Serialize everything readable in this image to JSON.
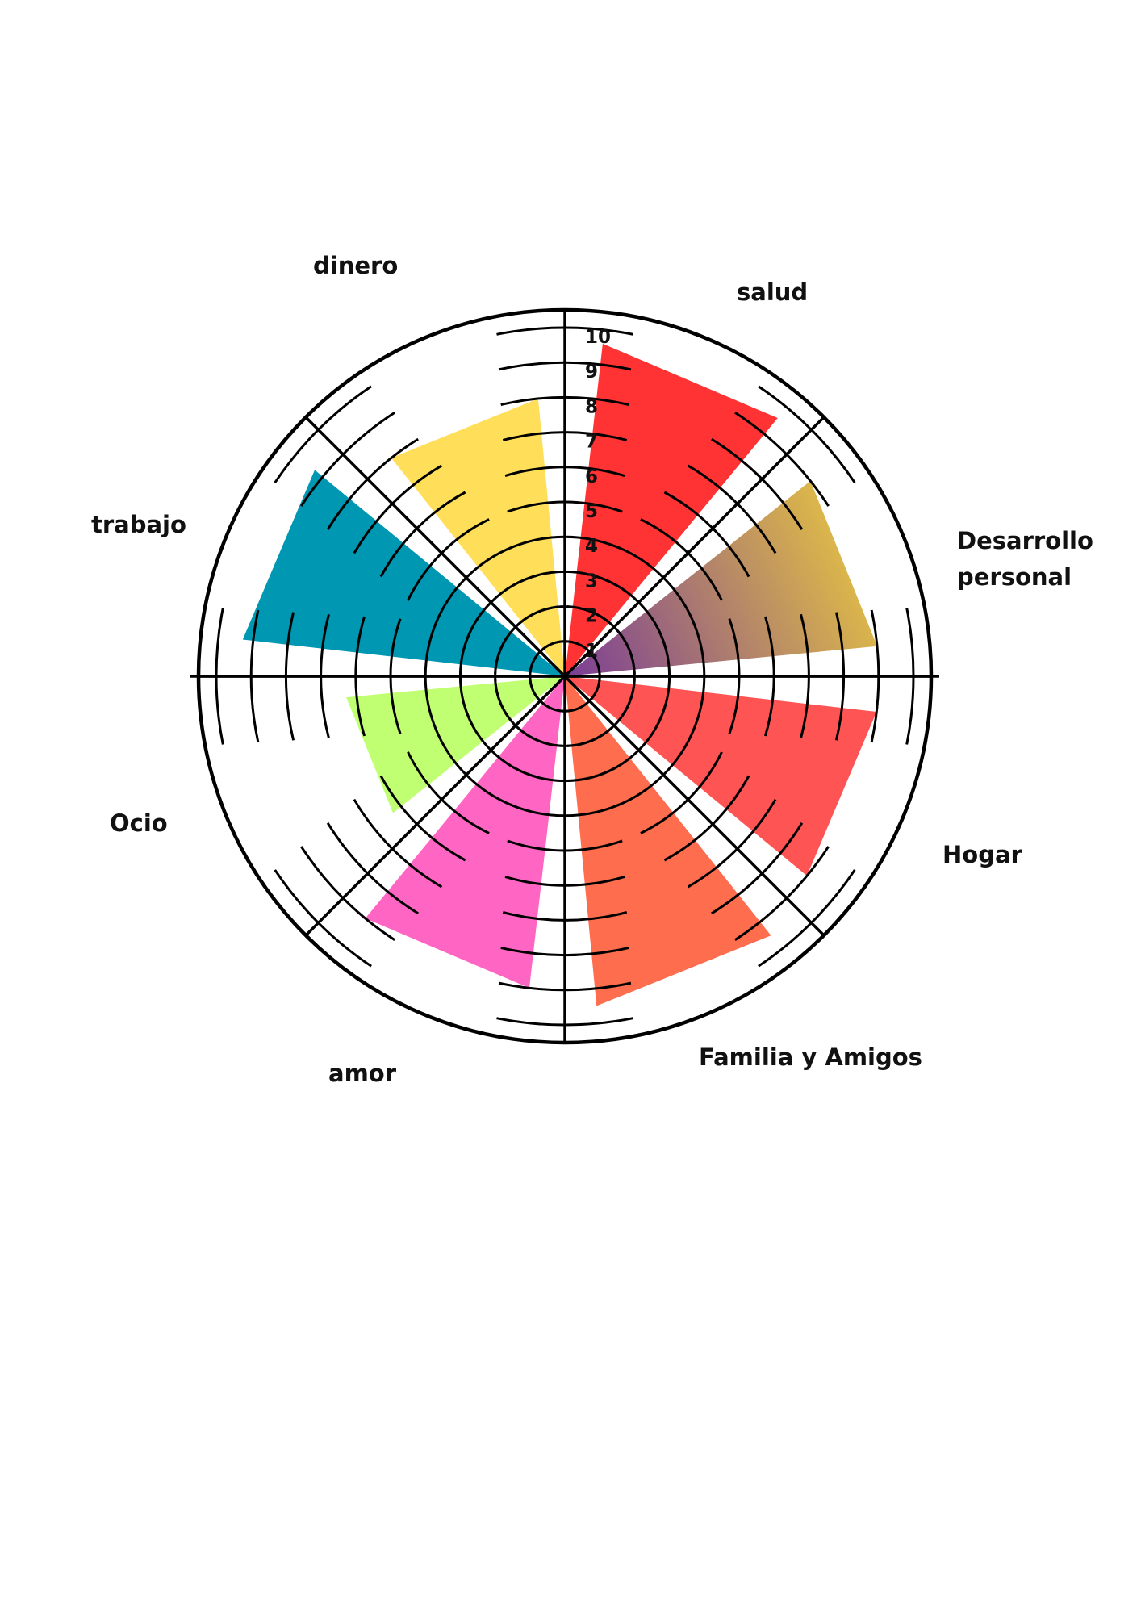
{
  "chart_data": {
    "type": "wheel",
    "scale_max": 10,
    "scale_ticks": [
      "1",
      "2",
      "3",
      "4",
      "5",
      "6",
      "7",
      "8",
      "9",
      "10"
    ],
    "categories": [
      {
        "id": "salud",
        "label_lines": [
          "salud"
        ],
        "value": 9.6,
        "color": "#ff3333"
      },
      {
        "id": "desarrollo-personal",
        "label_lines": [
          "Desarrollo",
          "personal"
        ],
        "value": 9.0,
        "gradient": [
          "#7a3d96",
          "#f6d736"
        ]
      },
      {
        "id": "hogar",
        "label_lines": [
          "Hogar"
        ],
        "value": 9.0,
        "color": "#ff5454"
      },
      {
        "id": "familia-y-amigos",
        "label_lines": [
          "Familia y Amigos"
        ],
        "value": 9.5,
        "color": "#ff6d4f"
      },
      {
        "id": "amor",
        "label_lines": [
          "amor"
        ],
        "value": 9.0,
        "color": "#ff66c4"
      },
      {
        "id": "ocio",
        "label_lines": [
          "Ocio"
        ],
        "value": 6.3,
        "color": "#c1ff72"
      },
      {
        "id": "trabajo",
        "label_lines": [
          "trabajo"
        ],
        "value": 9.3,
        "color": "#0097b2"
      },
      {
        "id": "dinero",
        "label_lines": [
          "dinero"
        ],
        "value": 8.0,
        "color": "#ffde59"
      }
    ]
  }
}
